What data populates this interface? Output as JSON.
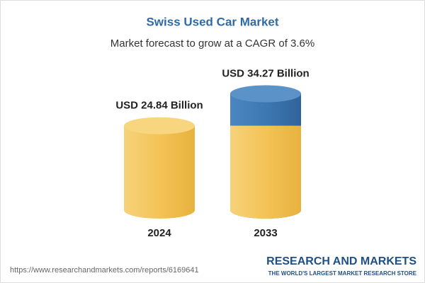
{
  "chart_data": {
    "type": "cylinder",
    "title": "Swiss Used Car Market",
    "subtitle": "Market forecast to grow at a CAGR of 3.6%",
    "categories": [
      "2024",
      "2033"
    ],
    "values": [
      24.84,
      34.27
    ],
    "value_labels": [
      "USD 24.84 Billion",
      "USD 34.27 Billion"
    ],
    "color": "#f3c356",
    "growth_color": "#3e78b2"
  },
  "footer": {
    "url": "https://www.researchandmarkets.com/reports/6169641",
    "brand": "RESEARCH AND MARKETS",
    "tagline": "THE WORLD'S LARGEST MARKET RESEARCH STORE"
  }
}
